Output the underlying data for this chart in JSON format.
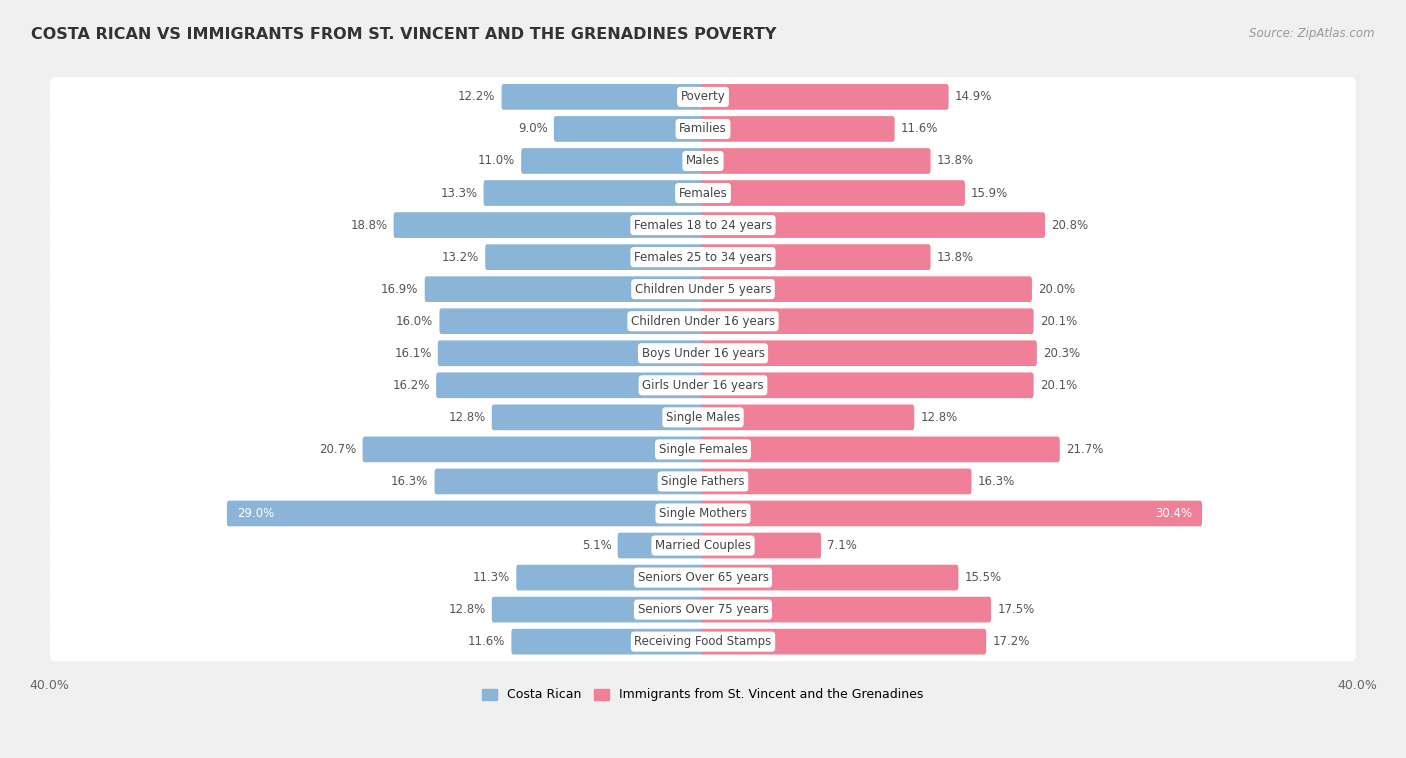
{
  "title": "COSTA RICAN VS IMMIGRANTS FROM ST. VINCENT AND THE GRENADINES POVERTY",
  "source": "Source: ZipAtlas.com",
  "categories": [
    "Poverty",
    "Families",
    "Males",
    "Females",
    "Females 18 to 24 years",
    "Females 25 to 34 years",
    "Children Under 5 years",
    "Children Under 16 years",
    "Boys Under 16 years",
    "Girls Under 16 years",
    "Single Males",
    "Single Females",
    "Single Fathers",
    "Single Mothers",
    "Married Couples",
    "Seniors Over 65 years",
    "Seniors Over 75 years",
    "Receiving Food Stamps"
  ],
  "left_values": [
    12.2,
    9.0,
    11.0,
    13.3,
    18.8,
    13.2,
    16.9,
    16.0,
    16.1,
    16.2,
    12.8,
    20.7,
    16.3,
    29.0,
    5.1,
    11.3,
    12.8,
    11.6
  ],
  "right_values": [
    14.9,
    11.6,
    13.8,
    15.9,
    20.8,
    13.8,
    20.0,
    20.1,
    20.3,
    20.1,
    12.8,
    21.7,
    16.3,
    30.4,
    7.1,
    15.5,
    17.5,
    17.2
  ],
  "left_color": "#8ab4d8",
  "right_color": "#f08098",
  "left_label": "Costa Rican",
  "right_label": "Immigrants from St. Vincent and the Grenadines",
  "xlim": 40.0,
  "background_color": "#f0f0f0",
  "row_bg_color": "#ffffff",
  "title_fontsize": 11.5,
  "value_fontsize": 8.5,
  "category_fontsize": 8.5,
  "single_mothers_left_text_color": "#ffffff",
  "single_mothers_right_text_color": "#ffffff"
}
